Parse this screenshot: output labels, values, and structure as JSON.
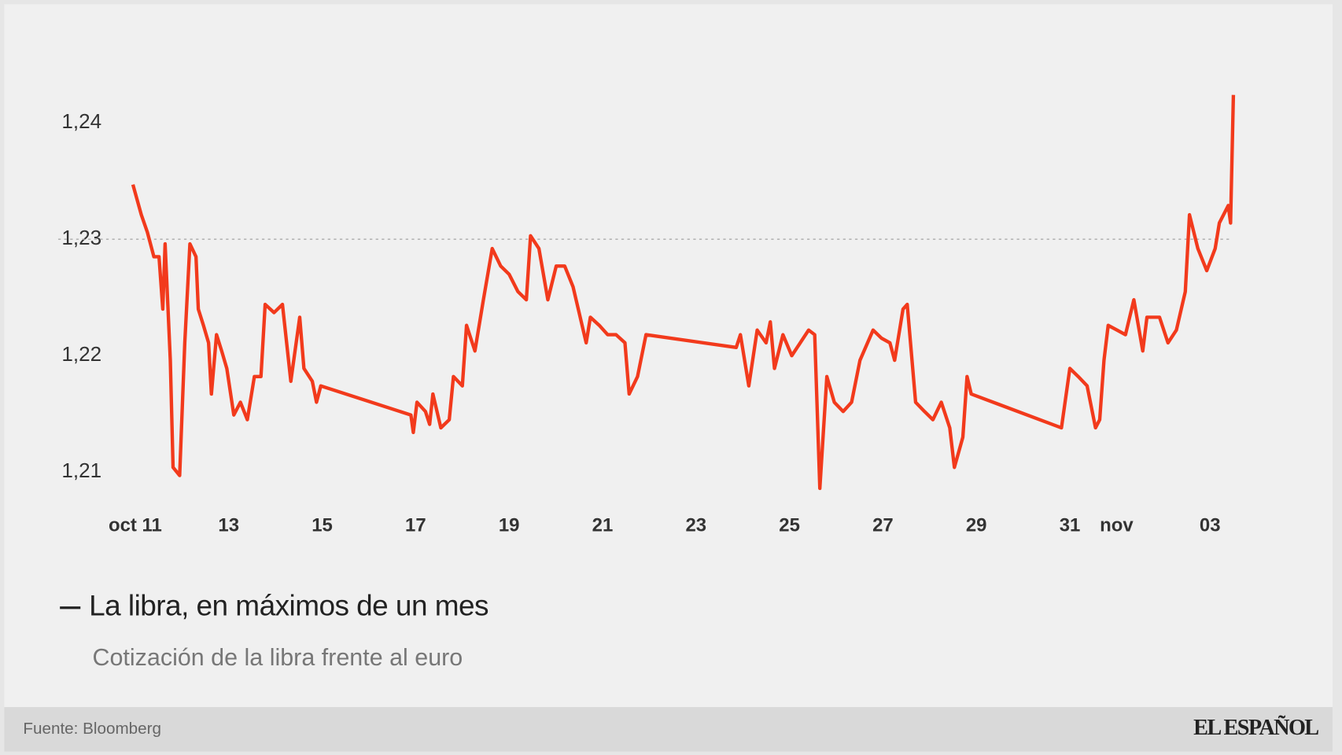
{
  "chart_data": {
    "type": "line",
    "title": "La libra, en máximos de un mes",
    "subtitle": "Cotización de la libra frente al euro",
    "source": "Fuente: Bloomberg",
    "brand": "EL ESPAÑOL",
    "color": "#f23a1c",
    "reference_line": 1.23,
    "grid": false,
    "xlim": [
      10,
      35
    ],
    "ylim": [
      1.2079,
      1.2432
    ],
    "xticks": [
      {
        "value": 11,
        "label": "oct 11"
      },
      13,
      15,
      17,
      19,
      21,
      23,
      25,
      27,
      29,
      31,
      {
        "value": 32,
        "label": "nov"
      },
      {
        "value": 34,
        "label": "03"
      }
    ],
    "yticks": [
      {
        "value": 1.24,
        "label": "1,24"
      },
      {
        "value": 1.23,
        "label": "1,23"
      },
      {
        "value": 1.22,
        "label": "1,22"
      },
      {
        "value": 1.21,
        "label": "1,21"
      }
    ],
    "x": [
      10.95,
      11.13,
      11.26,
      11.4,
      11.51,
      11.59,
      11.64,
      11.75,
      11.81,
      11.95,
      12.06,
      12.17,
      12.3,
      12.35,
      12.46,
      12.57,
      12.63,
      12.74,
      12.85,
      12.96,
      13.11,
      13.25,
      13.4,
      13.55,
      13.69,
      13.78,
      13.97,
      14.15,
      14.33,
      14.52,
      14.61,
      14.79,
      14.88,
      14.97,
      16.9,
      16.95,
      17.03,
      17.21,
      17.3,
      17.37,
      17.54,
      17.72,
      17.81,
      18.0,
      18.09,
      18.27,
      18.45,
      18.64,
      18.82,
      19.0,
      19.19,
      19.37,
      19.46,
      19.64,
      19.83,
      20.01,
      20.19,
      20.37,
      20.65,
      20.74,
      20.93,
      21.11,
      21.29,
      21.48,
      21.57,
      21.75,
      21.93,
      23.86,
      23.95,
      24.13,
      24.31,
      24.5,
      24.59,
      24.68,
      24.86,
      25.05,
      25.23,
      25.41,
      25.54,
      25.65,
      25.8,
      25.96,
      26.15,
      26.33,
      26.51,
      26.79,
      26.97,
      27.15,
      27.25,
      27.43,
      27.52,
      27.7,
      27.89,
      28.07,
      28.25,
      28.43,
      28.53,
      28.71,
      28.8,
      28.89,
      30.82,
      31.0,
      31.18,
      31.37,
      31.55,
      31.64,
      31.73,
      31.82,
      32.01,
      32.19,
      32.37,
      32.56,
      32.65,
      32.92,
      33.1,
      33.28,
      33.47,
      33.56,
      33.74,
      33.93,
      34.11,
      34.2,
      34.39,
      34.44,
      34.5
    ],
    "values": [
      1.2347,
      1.2321,
      1.2306,
      1.2285,
      1.2285,
      1.224,
      1.2296,
      1.2196,
      1.2104,
      1.2097,
      1.2211,
      1.2296,
      1.2285,
      1.224,
      1.2226,
      1.2211,
      1.2167,
      1.2218,
      1.2204,
      1.2189,
      1.2149,
      1.216,
      1.2145,
      1.2182,
      1.2182,
      1.2244,
      1.2237,
      1.2244,
      1.2178,
      1.2233,
      1.2189,
      1.2178,
      1.216,
      1.2174,
      1.2149,
      1.2134,
      1.216,
      1.2152,
      1.2141,
      1.2167,
      1.2138,
      1.2145,
      1.2182,
      1.2174,
      1.2226,
      1.2204,
      1.2248,
      1.2292,
      1.2277,
      1.227,
      1.2255,
      1.2248,
      1.2303,
      1.2292,
      1.2248,
      1.2277,
      1.2277,
      1.2259,
      1.2211,
      1.2233,
      1.2226,
      1.2218,
      1.2218,
      1.2211,
      1.2167,
      1.2182,
      1.2218,
      1.2207,
      1.2218,
      1.2174,
      1.2222,
      1.2211,
      1.2229,
      1.2189,
      1.2218,
      1.22,
      1.2211,
      1.2222,
      1.2218,
      1.2086,
      1.2182,
      1.216,
      1.2152,
      1.216,
      1.2196,
      1.2222,
      1.2215,
      1.2211,
      1.2196,
      1.224,
      1.2244,
      1.216,
      1.2152,
      1.2145,
      1.216,
      1.2138,
      1.2104,
      1.213,
      1.2182,
      1.2167,
      1.2138,
      1.2189,
      1.2182,
      1.2174,
      1.2138,
      1.2145,
      1.2196,
      1.2226,
      1.2222,
      1.2218,
      1.2248,
      1.2204,
      1.2233,
      1.2233,
      1.2211,
      1.2222,
      1.2255,
      1.2321,
      1.2292,
      1.2273,
      1.2292,
      1.2314,
      1.2329,
      1.2314,
      1.2424
    ]
  }
}
